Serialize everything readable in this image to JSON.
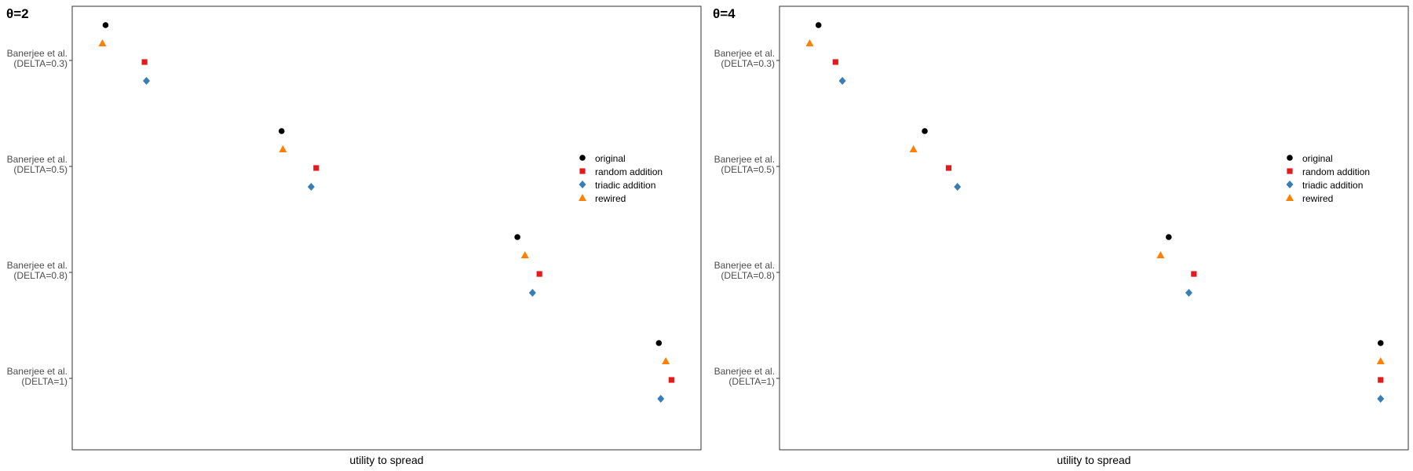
{
  "colors": {
    "original": "#000000",
    "random_addition": "#e41a1c",
    "triadic_addition": "#377eb8",
    "rewired": "#ff7f00"
  },
  "chart_data": [
    {
      "type": "scatter",
      "title": "θ=2",
      "xlabel": "utility to spread",
      "ylabel": "",
      "categories": [
        [
          "Banerjee et al.",
          "(DELTA=0.3)"
        ],
        [
          "Banerjee et al.",
          "(DELTA=0.5)"
        ],
        [
          "Banerjee et al.",
          "(DELTA=0.8)"
        ],
        [
          "Banerjee et al.",
          "(DELTA=1)"
        ]
      ],
      "xlim": [
        0,
        100
      ],
      "legend_position": "right",
      "series": [
        {
          "name": "original",
          "shape": "circle",
          "color": "#000000",
          "values": [
            5.3,
            33.3,
            70.8,
            93.3
          ]
        },
        {
          "name": "random addition",
          "shape": "square",
          "color": "#e41a1c",
          "values": [
            11.5,
            38.8,
            74.3,
            95.3
          ]
        },
        {
          "name": "triadic addition",
          "shape": "diamond",
          "color": "#377eb8",
          "values": [
            11.8,
            38.0,
            73.2,
            93.6
          ]
        },
        {
          "name": "rewired",
          "shape": "triangle",
          "color": "#ff7f00",
          "values": [
            4.8,
            33.5,
            72.0,
            94.4
          ]
        }
      ]
    },
    {
      "type": "scatter",
      "title": "θ=4",
      "xlabel": "utility to spread",
      "ylabel": "",
      "categories": [
        [
          "Banerjee et al.",
          "(DELTA=0.3)"
        ],
        [
          "Banerjee et al.",
          "(DELTA=0.5)"
        ],
        [
          "Banerjee et al.",
          "(DELTA=0.8)"
        ],
        [
          "Banerjee et al.",
          "(DELTA=1)"
        ]
      ],
      "xlim": [
        0,
        100
      ],
      "legend_position": "right",
      "series": [
        {
          "name": "original",
          "shape": "circle",
          "color": "#000000",
          "values": [
            6.2,
            23.1,
            61.9,
            95.6
          ]
        },
        {
          "name": "random addition",
          "shape": "square",
          "color": "#e41a1c",
          "values": [
            8.9,
            26.9,
            65.9,
            95.6
          ]
        },
        {
          "name": "triadic addition",
          "shape": "diamond",
          "color": "#377eb8",
          "values": [
            10.0,
            28.3,
            65.1,
            95.6
          ]
        },
        {
          "name": "rewired",
          "shape": "triangle",
          "color": "#ff7f00",
          "values": [
            4.8,
            21.3,
            60.6,
            95.6
          ]
        }
      ]
    }
  ]
}
